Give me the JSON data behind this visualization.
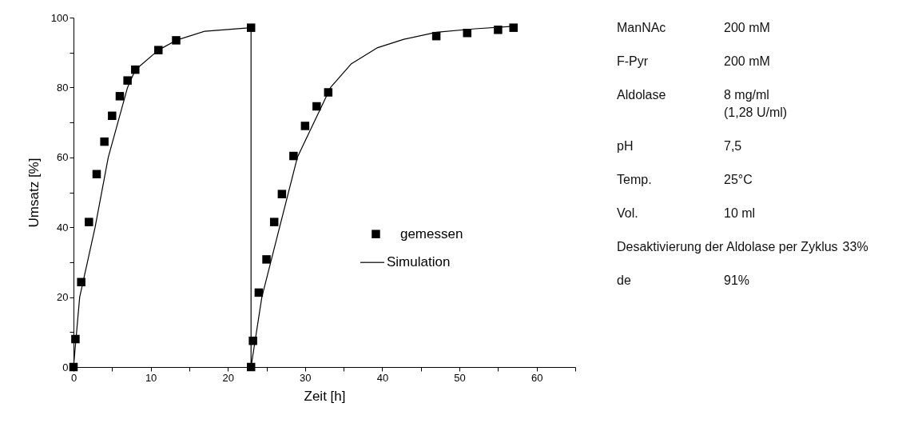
{
  "chart_data": {
    "type": "scatter",
    "xlabel": "Zeit [h]",
    "ylabel": "Umsatz [%]",
    "xlim": [
      0,
      65
    ],
    "xticks": [
      0,
      {
        "value": 5,
        "label": null
      },
      10,
      {
        "value": 15,
        "label": null
      },
      20,
      {
        "value": 25,
        "label": null
      },
      30,
      {
        "value": 35,
        "label": null
      },
      40,
      {
        "value": 45,
        "label": null
      },
      50,
      {
        "value": 55,
        "label": null
      },
      60,
      {
        "value": 65,
        "label": null
      }
    ],
    "ylim": [
      0,
      100
    ],
    "yticks": [
      0,
      {
        "value": 10,
        "label": null
      },
      20,
      {
        "value": 30,
        "label": null
      },
      40,
      {
        "value": 50,
        "label": null
      },
      60,
      {
        "value": 70,
        "label": null
      },
      80,
      {
        "value": 90,
        "label": null
      },
      100
    ],
    "grid": false,
    "legend": "right",
    "series": [
      {
        "name": "gemessen",
        "marker": "square",
        "color": "#000000",
        "x": [
          0,
          0.25,
          1,
          2,
          3,
          4,
          5,
          6,
          7,
          8,
          11,
          13.3,
          23,
          23,
          23.25,
          24,
          25,
          26,
          27,
          28.5,
          30,
          31.5,
          33,
          47,
          51,
          55,
          57
        ],
        "values": [
          0,
          8,
          24.3,
          41.5,
          55.2,
          64.5,
          71.9,
          77.5,
          82,
          85.1,
          90.7,
          93.5,
          97.1,
          0,
          7.5,
          21.3,
          30.8,
          41.5,
          49.5,
          60.4,
          69,
          74.6,
          78.6,
          94.7,
          95.6,
          96.5,
          97.1
        ]
      },
      {
        "name": "Simulation",
        "type": "line",
        "marker": "none",
        "line_style": "solid",
        "color": "#000000",
        "x": [
          0,
          0.8,
          2.8,
          4.5,
          7,
          8,
          11,
          13.3,
          17,
          23,
          23,
          24.4,
          26.7,
          29,
          33.3,
          36,
          39.4,
          42.8,
          47,
          52,
          57
        ],
        "values": [
          0,
          20,
          40,
          60,
          80,
          85,
          90.7,
          93.5,
          96.1,
          97.1,
          0,
          20,
          40,
          60,
          80,
          86.8,
          91.4,
          93.8,
          95.8,
          96.8,
          97.5
        ]
      }
    ],
    "annotations": [
      "ManNAc",
      "200 mM",
      "F-Pyr",
      "200 mM",
      "Aldolase",
      "8 mg/ml (1,28 U/ml)",
      "pH",
      "7,5",
      "Temp.",
      "25°C",
      "Vol.",
      "10 ml",
      "Desaktivierung der Aldolase per Zyklus",
      "33%",
      "de",
      "91%"
    ]
  }
}
